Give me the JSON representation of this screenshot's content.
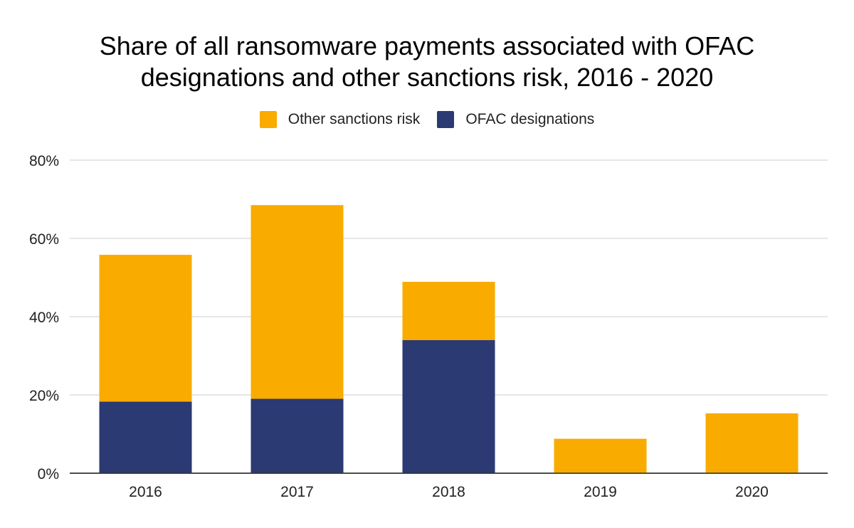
{
  "chart_data": {
    "type": "bar",
    "stacked": true,
    "title_lines": [
      "Share of all ransomware payments associated with OFAC",
      "designations and other sanctions risk, 2016 - 2020"
    ],
    "categories": [
      "2016",
      "2017",
      "2018",
      "2019",
      "2020"
    ],
    "series": [
      {
        "name": "OFAC designations",
        "color": "#2b3a73",
        "values": [
          18.3,
          19,
          34,
          0,
          0
        ]
      },
      {
        "name": "Other sanctions risk",
        "color": "#f9ab00",
        "values": [
          37.5,
          49.5,
          14.9,
          8.8,
          15.3
        ]
      }
    ],
    "legend": [
      {
        "name": "Other sanctions risk",
        "color": "#f9ab00"
      },
      {
        "name": "OFAC designations",
        "color": "#2b3a73"
      }
    ],
    "ylim": [
      0,
      80
    ],
    "yticks": [
      0,
      20,
      40,
      60,
      80
    ],
    "ytick_labels": [
      "0%",
      "20%",
      "40%",
      "60%",
      "80%"
    ],
    "xlabel": "",
    "ylabel": "",
    "grid": true,
    "legend_position": "top-center"
  }
}
